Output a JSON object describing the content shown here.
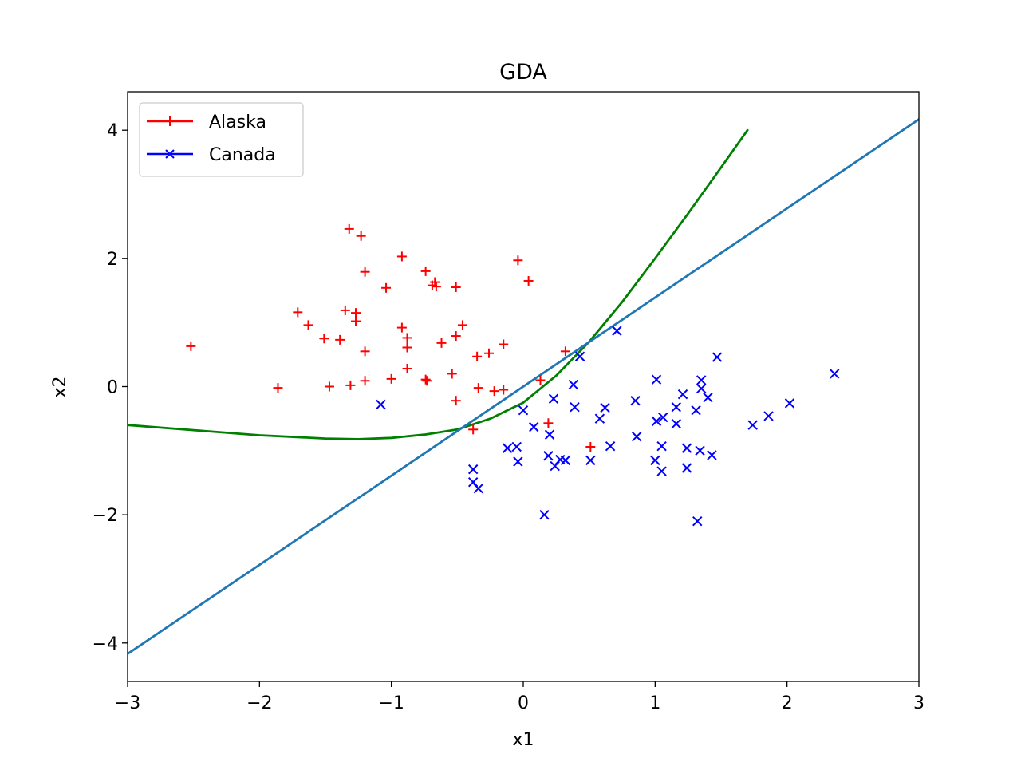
{
  "chart_data": {
    "type": "scatter",
    "title": "GDA",
    "xlabel": "x1",
    "ylabel": "x2",
    "xlim": [
      -3,
      3
    ],
    "ylim": [
      -4.6,
      4.6
    ],
    "xticks": [
      -3,
      -2,
      -1,
      0,
      1,
      2,
      3
    ],
    "yticks": [
      -4,
      -2,
      0,
      2,
      4
    ],
    "xtick_labels": [
      "−3",
      "−2",
      "−1",
      "0",
      "1",
      "2",
      "3"
    ],
    "ytick_labels": [
      "−4",
      "−2",
      "0",
      "2",
      "4"
    ],
    "grid": false,
    "legend": {
      "placement": "top-left",
      "entries": [
        "Alaska",
        "Canada"
      ]
    },
    "series": [
      {
        "name": "Alaska",
        "marker": "plus",
        "color": "#ff0000",
        "points": [
          [
            -2.52,
            0.63
          ],
          [
            -1.86,
            -0.02
          ],
          [
            -1.71,
            1.16
          ],
          [
            -1.63,
            0.96
          ],
          [
            -1.51,
            0.75
          ],
          [
            -1.47,
            0.0
          ],
          [
            -1.39,
            0.73
          ],
          [
            -1.35,
            1.19
          ],
          [
            -1.31,
            0.02
          ],
          [
            -1.32,
            2.46
          ],
          [
            -1.27,
            1.15
          ],
          [
            -1.27,
            1.02
          ],
          [
            -1.23,
            2.35
          ],
          [
            -1.2,
            1.79
          ],
          [
            -1.2,
            0.55
          ],
          [
            -1.2,
            0.09
          ],
          [
            -1.04,
            1.54
          ],
          [
            -1.0,
            0.12
          ],
          [
            -0.92,
            2.03
          ],
          [
            -0.92,
            0.92
          ],
          [
            -0.88,
            0.76
          ],
          [
            -0.88,
            0.61
          ],
          [
            -0.88,
            0.28
          ],
          [
            -0.74,
            1.8
          ],
          [
            -0.74,
            0.11
          ],
          [
            -0.73,
            0.09
          ],
          [
            -0.69,
            1.58
          ],
          [
            -0.67,
            1.63
          ],
          [
            -0.66,
            1.56
          ],
          [
            -0.62,
            0.68
          ],
          [
            -0.54,
            0.2
          ],
          [
            -0.51,
            1.55
          ],
          [
            -0.51,
            0.79
          ],
          [
            -0.51,
            -0.22
          ],
          [
            -0.46,
            0.96
          ],
          [
            -0.38,
            -0.67
          ],
          [
            -0.35,
            0.47
          ],
          [
            -0.34,
            -0.02
          ],
          [
            -0.26,
            0.52
          ],
          [
            -0.22,
            -0.07
          ],
          [
            -0.15,
            -0.05
          ],
          [
            -0.15,
            0.66
          ],
          [
            -0.04,
            1.97
          ],
          [
            0.04,
            1.65
          ],
          [
            0.13,
            0.1
          ],
          [
            0.19,
            -0.57
          ],
          [
            0.32,
            0.55
          ],
          [
            0.51,
            -0.94
          ]
        ]
      },
      {
        "name": "Canada",
        "marker": "x",
        "color": "#0000ff",
        "points": [
          [
            -1.08,
            -0.28
          ],
          [
            -0.38,
            -1.29
          ],
          [
            -0.38,
            -1.49
          ],
          [
            -0.34,
            -1.59
          ],
          [
            -0.12,
            -0.96
          ],
          [
            -0.05,
            -0.94
          ],
          [
            -0.04,
            -1.17
          ],
          [
            0.0,
            -0.37
          ],
          [
            0.08,
            -0.63
          ],
          [
            0.16,
            -2.0
          ],
          [
            0.19,
            -1.08
          ],
          [
            0.2,
            -0.75
          ],
          [
            0.23,
            -0.19
          ],
          [
            0.24,
            -1.24
          ],
          [
            0.28,
            -1.14
          ],
          [
            0.32,
            -1.15
          ],
          [
            0.38,
            0.03
          ],
          [
            0.39,
            -0.32
          ],
          [
            0.43,
            0.47
          ],
          [
            0.51,
            -1.15
          ],
          [
            0.58,
            -0.5
          ],
          [
            0.62,
            -0.33
          ],
          [
            0.66,
            -0.93
          ],
          [
            0.71,
            0.87
          ],
          [
            0.85,
            -0.22
          ],
          [
            0.86,
            -0.78
          ],
          [
            1.0,
            -1.15
          ],
          [
            1.01,
            0.11
          ],
          [
            1.01,
            -0.54
          ],
          [
            1.05,
            -1.32
          ],
          [
            1.05,
            -0.93
          ],
          [
            1.06,
            -0.48
          ],
          [
            1.16,
            -0.58
          ],
          [
            1.16,
            -0.32
          ],
          [
            1.21,
            -0.12
          ],
          [
            1.24,
            -0.96
          ],
          [
            1.24,
            -1.27
          ],
          [
            1.31,
            -0.37
          ],
          [
            1.32,
            -2.1
          ],
          [
            1.34,
            -1.0
          ],
          [
            1.35,
            0.1
          ],
          [
            1.35,
            -0.03
          ],
          [
            1.4,
            -0.17
          ],
          [
            1.43,
            -1.07
          ],
          [
            1.47,
            0.46
          ],
          [
            1.74,
            -0.6
          ],
          [
            1.86,
            -0.46
          ],
          [
            2.02,
            -0.26
          ],
          [
            2.36,
            0.2
          ]
        ]
      }
    ],
    "lines": [
      {
        "style": "quadratic-boundary",
        "color": "#008000",
        "points": [
          [
            -3.0,
            -0.6
          ],
          [
            -2.5,
            -0.68
          ],
          [
            -2.0,
            -0.76
          ],
          [
            -1.5,
            -0.81
          ],
          [
            -1.25,
            -0.82
          ],
          [
            -1.0,
            -0.8
          ],
          [
            -0.75,
            -0.75
          ],
          [
            -0.5,
            -0.67
          ],
          [
            -0.25,
            -0.5
          ],
          [
            0.0,
            -0.25
          ],
          [
            0.25,
            0.17
          ],
          [
            0.5,
            0.7
          ],
          [
            0.75,
            1.32
          ],
          [
            1.0,
            2.0
          ],
          [
            1.25,
            2.7
          ],
          [
            1.5,
            3.42
          ],
          [
            1.7,
            4.0
          ]
        ]
      },
      {
        "style": "linear-boundary",
        "color": "#1f77b4",
        "points": [
          [
            -3.0,
            -4.17
          ],
          [
            3.0,
            4.17
          ]
        ]
      }
    ]
  }
}
